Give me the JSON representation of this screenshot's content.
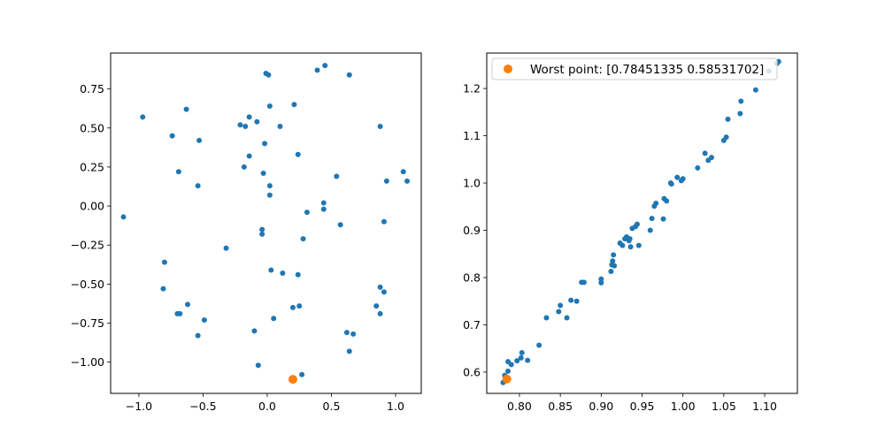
{
  "chart_data": [
    {
      "type": "scatter",
      "title": "",
      "xlabel": "",
      "ylabel": "",
      "xlim": [
        -1.22,
        1.2
      ],
      "ylim": [
        -1.2,
        0.98
      ],
      "xticks": [
        -1.0,
        -0.5,
        0.0,
        0.5,
        1.0
      ],
      "xtick_labels": [
        "−1.0",
        "−0.5",
        "0.0",
        "0.5",
        "1.0"
      ],
      "yticks": [
        -1.0,
        -0.75,
        -0.5,
        -0.25,
        0.0,
        0.25,
        0.5,
        0.75
      ],
      "ytick_labels": [
        "−1.00",
        "−0.75",
        "−0.50",
        "−0.25",
        "0.00",
        "0.25",
        "0.50",
        "0.75"
      ],
      "grid": false,
      "series": [
        {
          "color": "#1f77b4",
          "points": [
            [
              -0.01,
              0.85
            ],
            [
              0.01,
              0.84
            ],
            [
              0.39,
              0.87
            ],
            [
              0.45,
              0.9
            ],
            [
              0.64,
              0.84
            ],
            [
              -0.97,
              0.57
            ],
            [
              -0.63,
              0.62
            ],
            [
              0.02,
              0.64
            ],
            [
              0.21,
              0.65
            ],
            [
              -0.74,
              0.45
            ],
            [
              -0.53,
              0.42
            ],
            [
              -0.21,
              0.52
            ],
            [
              -0.17,
              0.51
            ],
            [
              -0.14,
              0.57
            ],
            [
              -0.08,
              0.54
            ],
            [
              0.1,
              0.51
            ],
            [
              0.88,
              0.51
            ],
            [
              -0.02,
              0.4
            ],
            [
              -0.14,
              0.32
            ],
            [
              0.24,
              0.33
            ],
            [
              -0.69,
              0.22
            ],
            [
              -0.18,
              0.25
            ],
            [
              -0.03,
              0.21
            ],
            [
              0.54,
              0.19
            ],
            [
              1.06,
              0.22
            ],
            [
              1.09,
              0.16
            ],
            [
              0.93,
              0.16
            ],
            [
              -0.54,
              0.13
            ],
            [
              0.02,
              0.13
            ],
            [
              0.02,
              0.07
            ],
            [
              -1.12,
              -0.07
            ],
            [
              0.31,
              -0.04
            ],
            [
              0.44,
              0.02
            ],
            [
              0.44,
              -0.02
            ],
            [
              0.57,
              -0.12
            ],
            [
              0.91,
              -0.1
            ],
            [
              -0.04,
              -0.15
            ],
            [
              -0.04,
              -0.18
            ],
            [
              0.28,
              -0.21
            ],
            [
              -0.32,
              -0.27
            ],
            [
              -0.8,
              -0.36
            ],
            [
              0.03,
              -0.41
            ],
            [
              0.12,
              -0.43
            ],
            [
              0.24,
              -0.44
            ],
            [
              -0.81,
              -0.53
            ],
            [
              0.88,
              -0.52
            ],
            [
              0.91,
              -0.55
            ],
            [
              -0.62,
              -0.63
            ],
            [
              -0.7,
              -0.69
            ],
            [
              -0.68,
              -0.69
            ],
            [
              0.2,
              -0.65
            ],
            [
              0.25,
              -0.64
            ],
            [
              0.85,
              -0.64
            ],
            [
              0.88,
              -0.69
            ],
            [
              -0.49,
              -0.73
            ],
            [
              0.05,
              -0.72
            ],
            [
              -0.54,
              -0.83
            ],
            [
              -0.1,
              -0.8
            ],
            [
              0.62,
              -0.81
            ],
            [
              0.67,
              -0.82
            ],
            [
              0.64,
              -0.93
            ],
            [
              -0.07,
              -1.02
            ],
            [
              0.27,
              -1.08
            ]
          ]
        },
        {
          "color": "#ff7f0e",
          "points": [
            [
              0.2,
              -1.11
            ]
          ]
        }
      ]
    },
    {
      "type": "scatter",
      "title": "",
      "xlabel": "",
      "ylabel": "",
      "xlim": [
        0.76,
        1.14
      ],
      "ylim": [
        0.555,
        1.275
      ],
      "xticks": [
        0.8,
        0.85,
        0.9,
        0.95,
        1.0,
        1.05,
        1.1
      ],
      "xtick_labels": [
        "0.80",
        "0.85",
        "0.90",
        "0.95",
        "1.00",
        "1.05",
        "1.10"
      ],
      "yticks": [
        0.6,
        0.7,
        0.8,
        0.9,
        1.0,
        1.1,
        1.2
      ],
      "ytick_labels": [
        "0.6",
        "0.7",
        "0.8",
        "0.9",
        "1.0",
        "1.1",
        "1.2"
      ],
      "grid": false,
      "legend": {
        "placement": "upper left",
        "entries": [
          {
            "label": "Worst point: [0.78451335 0.58531702]",
            "color": "#ff7f0e"
          }
        ]
      },
      "series": [
        {
          "color": "#1f77b4",
          "points": [
            [
              0.78,
              0.578
            ],
            [
              0.782,
              0.593
            ],
            [
              0.786,
              0.602
            ],
            [
              0.786,
              0.622
            ],
            [
              0.79,
              0.616
            ],
            [
              0.797,
              0.624
            ],
            [
              0.802,
              0.63
            ],
            [
              0.803,
              0.641
            ],
            [
              0.81,
              0.625
            ],
            [
              0.824,
              0.657
            ],
            [
              0.833,
              0.715
            ],
            [
              0.848,
              0.728
            ],
            [
              0.85,
              0.741
            ],
            [
              0.858,
              0.715
            ],
            [
              0.863,
              0.752
            ],
            [
              0.87,
              0.75
            ],
            [
              0.876,
              0.79
            ],
            [
              0.879,
              0.79
            ],
            [
              0.9,
              0.797
            ],
            [
              0.9,
              0.789
            ],
            [
              0.912,
              0.813
            ],
            [
              0.913,
              0.827
            ],
            [
              0.914,
              0.835
            ],
            [
              0.915,
              0.848
            ],
            [
              0.916,
              0.825
            ],
            [
              0.923,
              0.873
            ],
            [
              0.926,
              0.868
            ],
            [
              0.929,
              0.882
            ],
            [
              0.931,
              0.886
            ],
            [
              0.934,
              0.878
            ],
            [
              0.935,
              0.882
            ],
            [
              0.936,
              0.865
            ],
            [
              0.938,
              0.904
            ],
            [
              0.942,
              0.908
            ],
            [
              0.944,
              0.913
            ],
            [
              0.946,
              0.868
            ],
            [
              0.96,
              0.9
            ],
            [
              0.962,
              0.925
            ],
            [
              0.965,
              0.951
            ],
            [
              0.967,
              0.957
            ],
            [
              0.976,
              0.924
            ],
            [
              0.977,
              0.967
            ],
            [
              0.98,
              0.962
            ],
            [
              0.985,
              1.0
            ],
            [
              0.986,
              0.998
            ],
            [
              0.993,
              1.012
            ],
            [
              0.998,
              1.005
            ],
            [
              1.0,
              1.009
            ],
            [
              1.018,
              1.032
            ],
            [
              1.027,
              1.063
            ],
            [
              1.031,
              1.048
            ],
            [
              1.035,
              1.054
            ],
            [
              1.05,
              1.09
            ],
            [
              1.053,
              1.097
            ],
            [
              1.055,
              1.135
            ],
            [
              1.07,
              1.147
            ],
            [
              1.071,
              1.173
            ],
            [
              1.089,
              1.197
            ],
            [
              1.105,
              1.237
            ],
            [
              1.115,
              1.253
            ],
            [
              1.117,
              1.257
            ]
          ]
        },
        {
          "color": "#ff7f0e",
          "points": [
            [
              0.78451335,
              0.58531702
            ]
          ]
        }
      ]
    }
  ]
}
